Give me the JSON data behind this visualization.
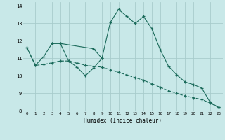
{
  "xlabel": "Humidex (Indice chaleur)",
  "bg_color": "#c8e8e8",
  "grid_color": "#a8cccc",
  "line_color": "#1a6a5a",
  "xlim": [
    -0.5,
    23.5
  ],
  "ylim": [
    8,
    14.2
  ],
  "yticks": [
    8,
    9,
    10,
    11,
    12,
    13,
    14
  ],
  "xticks": [
    0,
    1,
    2,
    3,
    4,
    5,
    6,
    7,
    8,
    9,
    10,
    11,
    12,
    13,
    14,
    15,
    16,
    17,
    18,
    19,
    20,
    21,
    22,
    23
  ],
  "line1_x": [
    0,
    1,
    2,
    3,
    4,
    5,
    6,
    7,
    8,
    9,
    10,
    11,
    12,
    13,
    14,
    15,
    16,
    17,
    18,
    19,
    20,
    21,
    22,
    23
  ],
  "line1_y": [
    11.6,
    10.6,
    11.1,
    11.85,
    11.85,
    10.85,
    10.5,
    10.0,
    10.45,
    11.0,
    13.05,
    13.8,
    13.4,
    13.0,
    13.4,
    12.7,
    11.5,
    10.55,
    10.05,
    9.65,
    9.5,
    9.3,
    8.5,
    8.2
  ],
  "line2_x": [
    0,
    1,
    2,
    3,
    4,
    5,
    6,
    7,
    8,
    9,
    10,
    11,
    12,
    13,
    14,
    15,
    16,
    17,
    18,
    19,
    20,
    21,
    22,
    23
  ],
  "line2_y": [
    11.6,
    10.6,
    10.65,
    10.75,
    10.85,
    10.85,
    10.75,
    10.6,
    10.55,
    10.5,
    10.35,
    10.2,
    10.05,
    9.9,
    9.75,
    9.55,
    9.35,
    9.15,
    9.0,
    8.85,
    8.75,
    8.65,
    8.45,
    8.2
  ],
  "line3_x": [
    3,
    4,
    8,
    9
  ],
  "line3_y": [
    11.85,
    11.85,
    11.55,
    11.0
  ]
}
